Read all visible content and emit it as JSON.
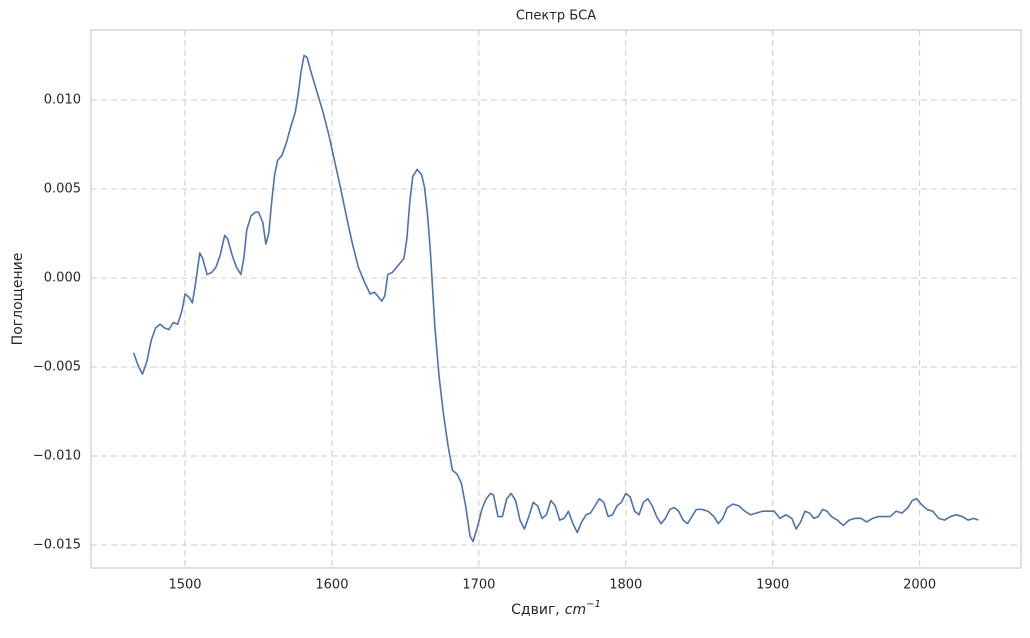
{
  "chart_data": {
    "type": "line",
    "title": "Спектр БСА",
    "x_label": {
      "text": "Сдвиг,",
      "unit": "cm",
      "exponent": "−1"
    },
    "y_label": "Поглощение",
    "xlim": [
      1436,
      2069
    ],
    "ylim": [
      -0.01629,
      0.01393
    ],
    "xticks": [
      1500,
      1600,
      1700,
      1800,
      1900,
      2000
    ],
    "yticks": [
      {
        "value": -0.015,
        "label": "−0.015"
      },
      {
        "value": -0.01,
        "label": "−0.010"
      },
      {
        "value": -0.005,
        "label": "−0.005"
      },
      {
        "value": 0,
        "label": "0.000"
      },
      {
        "value": 0.005,
        "label": "0.005"
      },
      {
        "value": 0.01,
        "label": "0.010"
      }
    ],
    "grid": true,
    "series": [
      {
        "color": "#4c72b0",
        "x": [
          1465,
          1468,
          1471,
          1474,
          1477,
          1480,
          1483,
          1486,
          1489,
          1492,
          1495,
          1498,
          1500,
          1503,
          1505,
          1507,
          1510,
          1512,
          1515,
          1518,
          1521,
          1524,
          1527,
          1529,
          1532,
          1535,
          1538,
          1540,
          1542,
          1545,
          1548,
          1550,
          1553,
          1555,
          1557,
          1559,
          1561,
          1563,
          1566,
          1569,
          1572,
          1575,
          1577,
          1579,
          1581,
          1583,
          1586,
          1590,
          1594,
          1598,
          1602,
          1606,
          1610,
          1614,
          1618,
          1622,
          1626,
          1629,
          1632,
          1634,
          1636,
          1638,
          1641,
          1644,
          1647,
          1649,
          1651,
          1653,
          1655,
          1658,
          1661,
          1663,
          1665,
          1667,
          1670,
          1673,
          1676,
          1679,
          1682,
          1685,
          1688,
          1691,
          1694,
          1696,
          1699,
          1702,
          1705,
          1708,
          1710,
          1713,
          1716,
          1719,
          1722,
          1725,
          1728,
          1731,
          1734,
          1737,
          1740,
          1743,
          1746,
          1749,
          1752,
          1755,
          1758,
          1761,
          1764,
          1767,
          1770,
          1773,
          1776,
          1779,
          1782,
          1785,
          1788,
          1791,
          1794,
          1797,
          1800,
          1803,
          1806,
          1809,
          1812,
          1815,
          1818,
          1821,
          1824,
          1827,
          1830,
          1833,
          1836,
          1839,
          1842,
          1845,
          1848,
          1852,
          1856,
          1860,
          1863,
          1866,
          1869,
          1873,
          1877,
          1881,
          1885,
          1889,
          1893,
          1897,
          1901,
          1905,
          1909,
          1913,
          1916,
          1919,
          1922,
          1925,
          1928,
          1931,
          1934,
          1937,
          1940,
          1944,
          1948,
          1952,
          1956,
          1960,
          1964,
          1968,
          1972,
          1976,
          1980,
          1984,
          1988,
          1992,
          1995,
          1998,
          2001,
          2005,
          2009,
          2013,
          2017,
          2021,
          2025,
          2029,
          2033,
          2037,
          2040
        ],
        "values": [
          -0.0042,
          -0.0049,
          -0.0054,
          -0.0047,
          -0.0035,
          -0.0028,
          -0.0026,
          -0.0028,
          -0.0029,
          -0.0025,
          -0.0026,
          -0.0018,
          -0.0009,
          -0.0011,
          -0.0014,
          -0.0004,
          0.0014,
          0.0011,
          0.0002,
          0.0003,
          0.0006,
          0.0013,
          0.0024,
          0.0022,
          0.0013,
          0.0006,
          0.0002,
          0.0011,
          0.0027,
          0.0035,
          0.0037,
          0.0037,
          0.0031,
          0.0019,
          0.0025,
          0.0043,
          0.0058,
          0.0066,
          0.0069,
          0.0076,
          0.0085,
          0.0093,
          0.0103,
          0.0116,
          0.0125,
          0.0124,
          0.0115,
          0.0104,
          0.0093,
          0.008,
          0.0065,
          0.005,
          0.0034,
          0.0019,
          0.0006,
          -0.0002,
          -0.0009,
          -0.0008,
          -0.0011,
          -0.0013,
          -0.001,
          0.0002,
          0.0003,
          0.0006,
          0.0009,
          0.0011,
          0.0022,
          0.0043,
          0.0057,
          0.0061,
          0.0058,
          0.0051,
          0.0036,
          0.0015,
          -0.0027,
          -0.0056,
          -0.0077,
          -0.0094,
          -0.0108,
          -0.011,
          -0.0115,
          -0.0128,
          -0.0145,
          -0.0148,
          -0.014,
          -0.013,
          -0.0124,
          -0.0121,
          -0.0122,
          -0.0134,
          -0.0134,
          -0.0124,
          -0.0121,
          -0.0125,
          -0.0136,
          -0.0141,
          -0.0134,
          -0.0126,
          -0.0128,
          -0.0135,
          -0.0133,
          -0.0125,
          -0.0128,
          -0.0136,
          -0.0135,
          -0.0131,
          -0.0138,
          -0.0143,
          -0.0137,
          -0.0133,
          -0.0132,
          -0.0128,
          -0.0124,
          -0.0126,
          -0.0134,
          -0.0133,
          -0.0128,
          -0.0126,
          -0.0121,
          -0.0123,
          -0.0131,
          -0.0133,
          -0.0126,
          -0.0124,
          -0.0128,
          -0.0134,
          -0.0138,
          -0.0135,
          -0.013,
          -0.0129,
          -0.0131,
          -0.0136,
          -0.0138,
          -0.0134,
          -0.013,
          -0.013,
          -0.0131,
          -0.0134,
          -0.0138,
          -0.0135,
          -0.0129,
          -0.0127,
          -0.0128,
          -0.0131,
          -0.0133,
          -0.0132,
          -0.0131,
          -0.0131,
          -0.0131,
          -0.0135,
          -0.0133,
          -0.0135,
          -0.0141,
          -0.0137,
          -0.0131,
          -0.0132,
          -0.0135,
          -0.0134,
          -0.013,
          -0.0131,
          -0.0134,
          -0.0136,
          -0.0139,
          -0.0136,
          -0.0135,
          -0.0135,
          -0.0137,
          -0.0135,
          -0.0134,
          -0.0134,
          -0.0134,
          -0.0131,
          -0.0132,
          -0.0129,
          -0.0125,
          -0.0124,
          -0.0127,
          -0.013,
          -0.0131,
          -0.0135,
          -0.0136,
          -0.0134,
          -0.0133,
          -0.0134,
          -0.0136,
          -0.0135,
          -0.0136
        ]
      }
    ]
  }
}
